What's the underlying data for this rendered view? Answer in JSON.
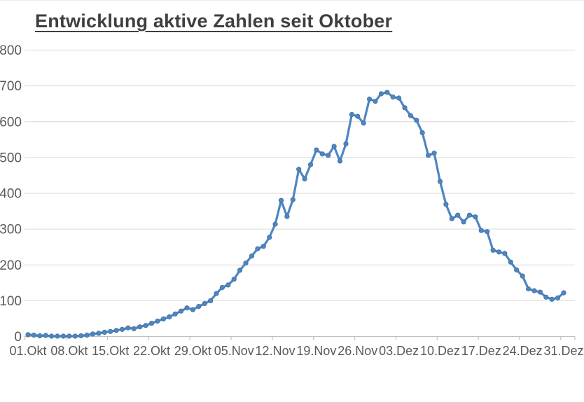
{
  "page": {
    "title": "Entwicklung aktive Zahlen seit Oktober"
  },
  "chart_data": {
    "type": "line",
    "title": "Entwicklung aktive Zahlen seit Oktober",
    "xlabel": "",
    "ylabel": "",
    "ylim": [
      0,
      800
    ],
    "y_ticks": [
      0,
      100,
      200,
      300,
      400,
      500,
      600,
      700,
      800
    ],
    "x_tick_labels": [
      "01.Okt",
      "08.Okt",
      "15.Okt",
      "22.Okt",
      "29.Okt",
      "05.Nov",
      "12.Nov",
      "19.Nov",
      "26.Nov",
      "03.Dez",
      "10.Dez",
      "17.Dez",
      "24.Dez",
      "31.Dez"
    ],
    "x_range": [
      "01.Okt",
      "31.Dez"
    ],
    "frequency": "daily",
    "grid": "horizontal",
    "legend": "none",
    "line_color": "#4e86c3",
    "marker_color": "#4e86c3",
    "marker_edge_color": "#41719c",
    "grid_color": "#d9d9d9",
    "axis_color": "#bfbfbf",
    "label_color": "#595959",
    "marker": "circle",
    "dates": [
      "01.Okt",
      "02.Okt",
      "03.Okt",
      "04.Okt",
      "05.Okt",
      "06.Okt",
      "07.Okt",
      "08.Okt",
      "09.Okt",
      "10.Okt",
      "11.Okt",
      "12.Okt",
      "13.Okt",
      "14.Okt",
      "15.Okt",
      "16.Okt",
      "17.Okt",
      "18.Okt",
      "19.Okt",
      "20.Okt",
      "21.Okt",
      "22.Okt",
      "23.Okt",
      "24.Okt",
      "25.Okt",
      "26.Okt",
      "27.Okt",
      "28.Okt",
      "29.Okt",
      "30.Okt",
      "31.Okt",
      "01.Nov",
      "02.Nov",
      "03.Nov",
      "04.Nov",
      "05.Nov",
      "06.Nov",
      "07.Nov",
      "08.Nov",
      "09.Nov",
      "10.Nov",
      "11.Nov",
      "12.Nov",
      "13.Nov",
      "14.Nov",
      "15.Nov",
      "16.Nov",
      "17.Nov",
      "18.Nov",
      "19.Nov",
      "20.Nov",
      "21.Nov",
      "22.Nov",
      "23.Nov",
      "24.Nov",
      "25.Nov",
      "26.Nov",
      "27.Nov",
      "28.Nov",
      "29.Nov",
      "30.Nov",
      "01.Dez",
      "02.Dez",
      "03.Dez",
      "04.Dez",
      "05.Dez",
      "06.Dez",
      "07.Dez",
      "08.Dez",
      "09.Dez",
      "10.Dez",
      "11.Dez",
      "12.Dez",
      "13.Dez",
      "14.Dez",
      "15.Dez",
      "16.Dez",
      "17.Dez",
      "18.Dez",
      "19.Dez",
      "20.Dez",
      "21.Dez",
      "22.Dez",
      "23.Dez",
      "24.Dez",
      "25.Dez",
      "26.Dez",
      "27.Dez",
      "28.Dez",
      "29.Dez",
      "30.Dez",
      "31.Dez"
    ],
    "values": [
      5,
      4,
      2,
      3,
      1,
      1,
      1,
      1,
      1,
      2,
      4,
      7,
      9,
      12,
      14,
      17,
      20,
      24,
      22,
      27,
      31,
      37,
      43,
      49,
      55,
      63,
      71,
      80,
      75,
      84,
      92,
      100,
      120,
      137,
      144,
      160,
      185,
      205,
      225,
      245,
      252,
      277,
      314,
      380,
      335,
      382,
      467,
      440,
      480,
      521,
      510,
      506,
      531,
      490,
      538,
      620,
      615,
      596,
      663,
      657,
      678,
      682,
      669,
      666,
      639,
      617,
      604,
      569,
      506,
      512,
      433,
      369,
      329,
      339,
      320,
      339,
      334,
      296,
      293,
      241,
      236,
      232,
      208,
      186,
      169,
      133,
      128,
      124,
      110,
      104,
      108,
      122
    ]
  }
}
